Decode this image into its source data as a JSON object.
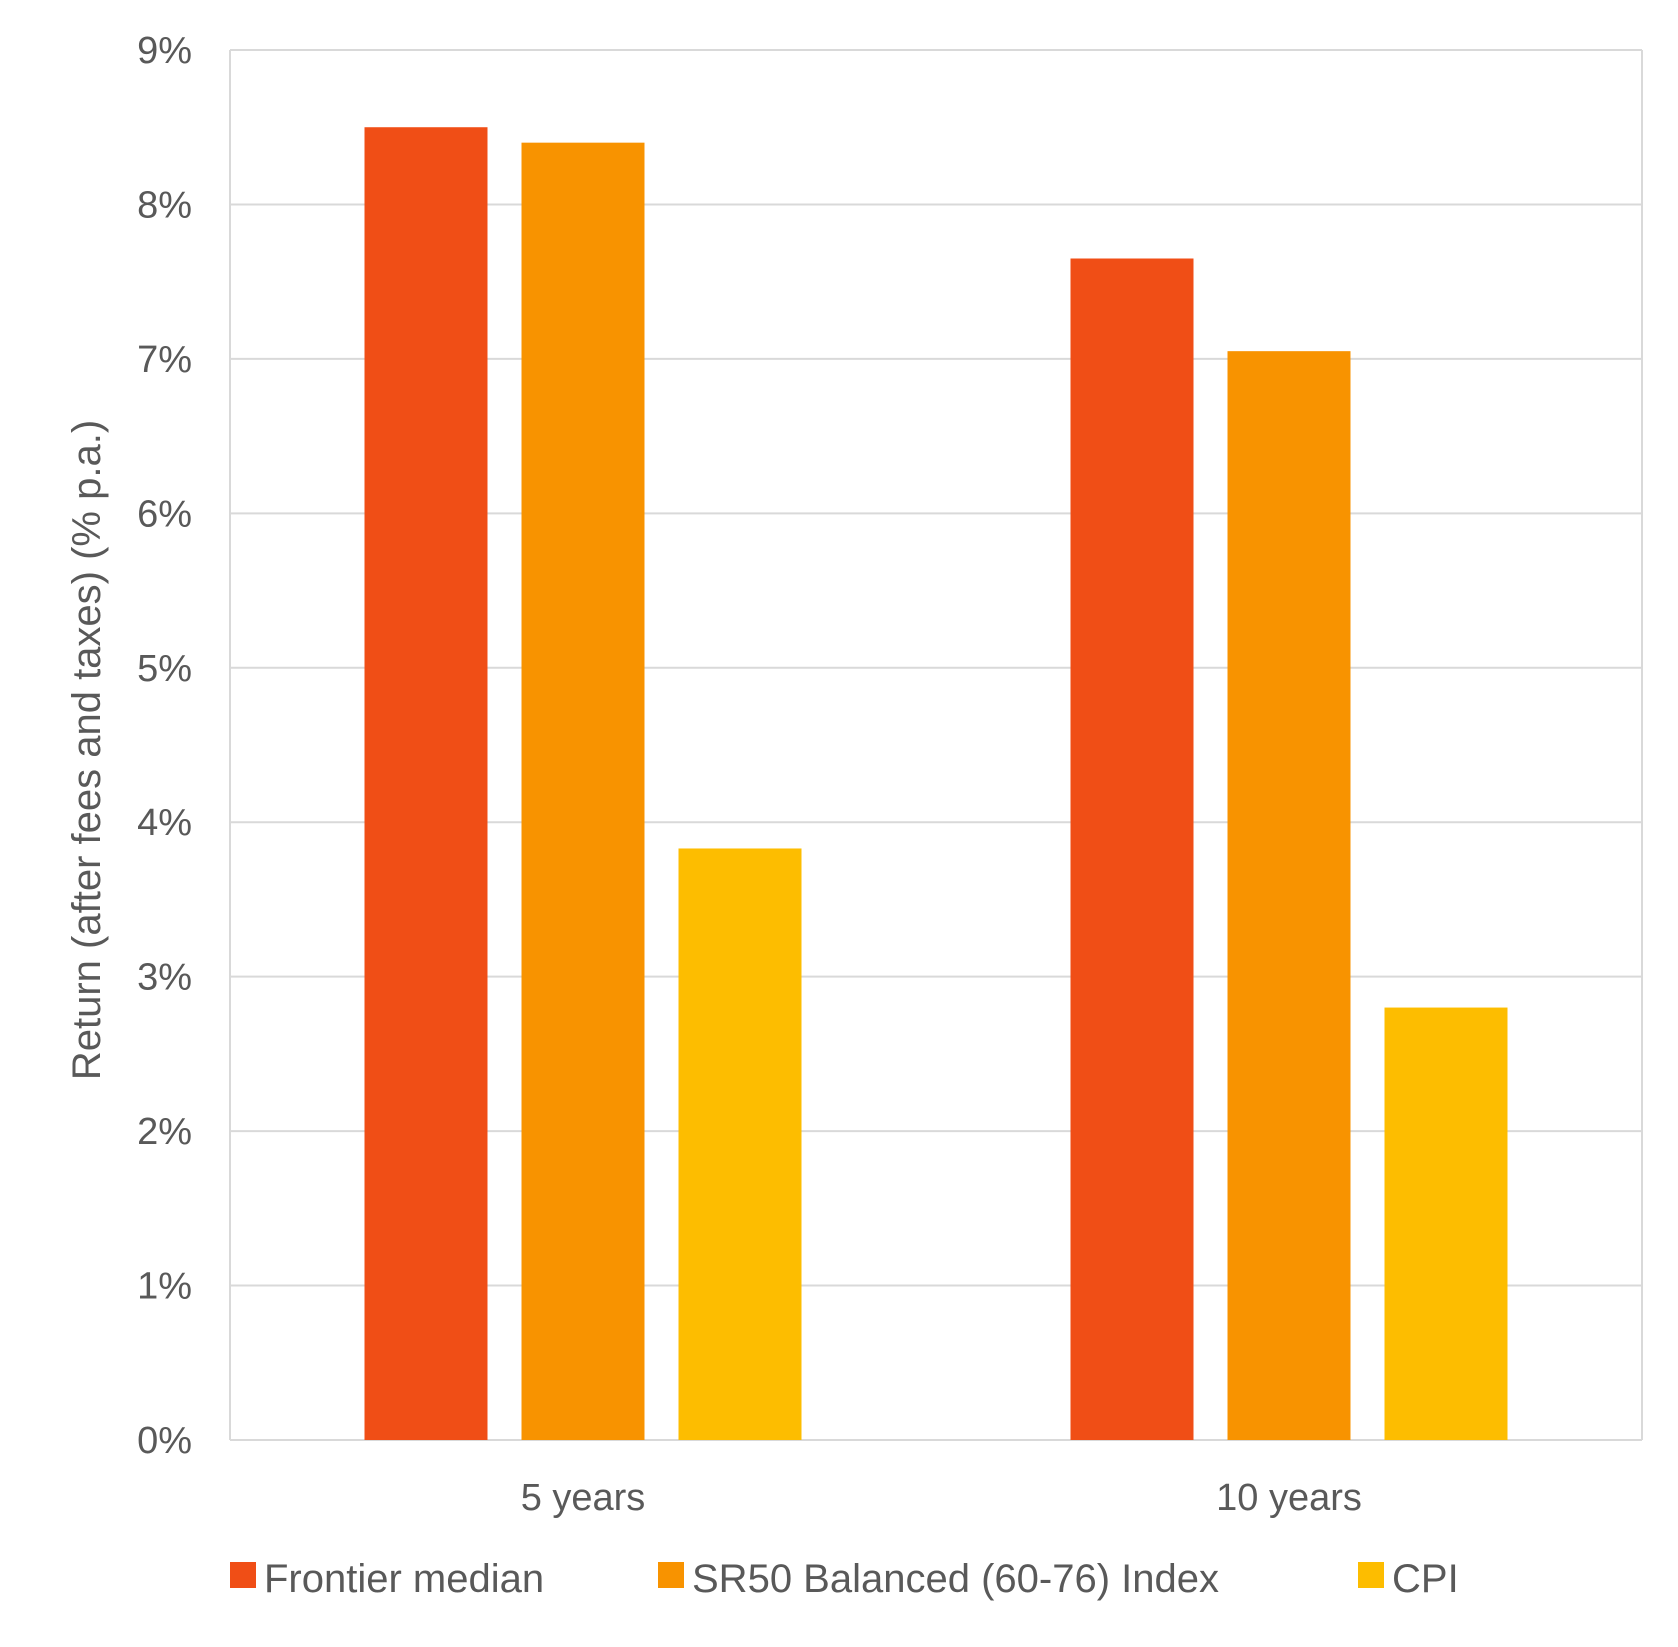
{
  "chart_data": {
    "type": "bar",
    "title": "",
    "xlabel": "",
    "ylabel": "Return (after fees and taxes) (% p.a.)",
    "categories": [
      "5 years",
      "10 years"
    ],
    "series": [
      {
        "name": "Frontier median",
        "values": [
          8.5,
          7.65
        ],
        "color": "#F04E16"
      },
      {
        "name": "SR50 Balanced (60-76) Index",
        "values": [
          8.4,
          7.05
        ],
        "color": "#F89300"
      },
      {
        "name": "CPI",
        "values": [
          3.83,
          2.8
        ],
        "color": "#FDBD00"
      }
    ],
    "ylim": [
      0,
      9
    ],
    "yticks": [
      0,
      1,
      2,
      3,
      4,
      5,
      6,
      7,
      8,
      9
    ],
    "ytick_labels": [
      "0%",
      "1%",
      "2%",
      "3%",
      "4%",
      "5%",
      "6%",
      "7%",
      "8%",
      "9%"
    ],
    "grid": true,
    "legend_position": "bottom",
    "gridline_color": "#D9D9D9",
    "text_color": "#595959"
  }
}
